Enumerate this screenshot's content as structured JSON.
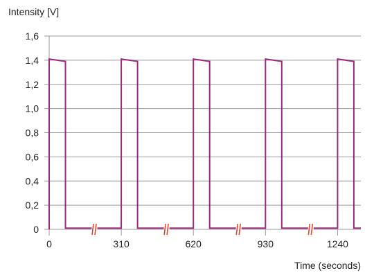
{
  "chart_data": {
    "type": "line",
    "ylabel": "Intensity [V]",
    "xlabel": "Time (seconds)",
    "ylim": [
      0,
      1.6
    ],
    "xlim": [
      0,
      1340
    ],
    "yticks": [
      0,
      0.2,
      0.4,
      0.6,
      0.8,
      1.0,
      1.2,
      1.4,
      1.6
    ],
    "ytick_labels": [
      "0",
      "0,2",
      "0,4",
      "0,6",
      "0,8",
      "1,0",
      "1,2",
      "1,4",
      "1,6"
    ],
    "xticks": [
      0,
      310,
      620,
      930,
      1240
    ],
    "xtick_labels": [
      "0",
      "310",
      "620",
      "930",
      "1240"
    ],
    "grid": "horizontal",
    "line_color": "#9a2a7e",
    "break_color": "#e8452e",
    "axis_break_x": [
      195,
      505,
      815,
      1125
    ],
    "series": [
      {
        "x": [
          0,
          0,
          70,
          70,
          310,
          310,
          380,
          380,
          620,
          620,
          690,
          690,
          930,
          930,
          1000,
          1000,
          1240,
          1240,
          1310,
          1310,
          1340
        ],
        "y": [
          0,
          1.41,
          1.39,
          0.01,
          0.01,
          1.41,
          1.39,
          0.01,
          0.01,
          1.41,
          1.39,
          0.01,
          0.01,
          1.41,
          1.39,
          0.01,
          0.01,
          1.41,
          1.39,
          0.01,
          0.01
        ]
      }
    ]
  }
}
